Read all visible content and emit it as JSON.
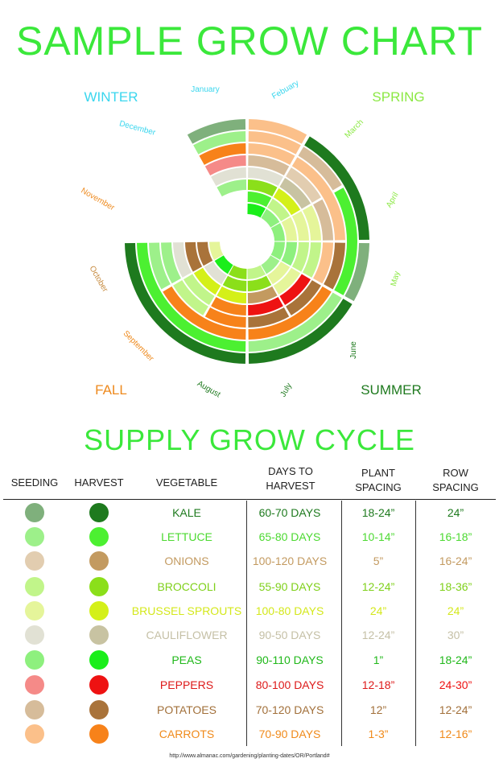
{
  "title": "SAMPLE GROW CHART",
  "subtitle": "SUPPLY GROW CYCLE",
  "seasons": [
    {
      "label": "WINTER",
      "color": "#3ad6ee"
    },
    {
      "label": "SPRING",
      "color": "#8be843"
    },
    {
      "label": "SUMMER",
      "color": "#1f7a1f"
    },
    {
      "label": "FALL",
      "color": "#ee8a1e"
    }
  ],
  "months": [
    {
      "label": "Febuary",
      "color": "#3ad6ee"
    },
    {
      "label": "March",
      "color": "#8be843"
    },
    {
      "label": "April",
      "color": "#8be843"
    },
    {
      "label": "May",
      "color": "#8be843"
    },
    {
      "label": "June",
      "color": "#1f7a1f"
    },
    {
      "label": "July",
      "color": "#1f7a1f"
    },
    {
      "label": "August",
      "color": "#1f7a1f"
    },
    {
      "label": "September",
      "color": "#ee8a1e"
    },
    {
      "label": "October",
      "color": "#c68a3e"
    },
    {
      "label": "November",
      "color": "#ee8a1e"
    },
    {
      "label": "December",
      "color": "#3ad6ee"
    },
    {
      "label": "January",
      "color": "#3ad6ee"
    }
  ],
  "table": {
    "headers": {
      "seeding": "SEEDING",
      "harvest": "HARVEST",
      "vegetable": "VEGETABLE",
      "days_line1": "DAYS TO",
      "days_line2": "HARVEST",
      "plant_line1": "PLANT",
      "plant_line2": "SPACING",
      "row_line1": "ROW",
      "row_line2": "SPACING"
    },
    "rows": [
      {
        "vegetable": "KALE",
        "days": "60-70 DAYS",
        "plant": "18-24”",
        "row": "24”",
        "seed_color": "#7fb07c",
        "harvest_color": "#1e7a1e",
        "text_color": "#1e7a1e",
        "row_text_color": "#1e7a1e"
      },
      {
        "vegetable": "LETTUCE",
        "days": "65-80 DAYS",
        "plant": "10-14”",
        "row": "16-18”",
        "seed_color": "#9df08a",
        "harvest_color": "#4cf031",
        "text_color": "#4cd931",
        "row_text_color": "#4cd931"
      },
      {
        "vegetable": "ONIONS",
        "days": "100-120 DAYS",
        "plant": "5”",
        "row": "16-24”",
        "seed_color": "#e2cdb0",
        "harvest_color": "#c39a60",
        "text_color": "#c39a60",
        "row_text_color": "#c39a60"
      },
      {
        "vegetable": "BROCCOLI",
        "days": "55-90 DAYS",
        "plant": "12-24”",
        "row": "18-36”",
        "seed_color": "#c1f58a",
        "harvest_color": "#8bdf1a",
        "text_color": "#7fd01a",
        "row_text_color": "#7fd01a"
      },
      {
        "vegetable": "BRUSSEL SPROUTS",
        "days": "100-80 DAYS",
        "plant": "24”",
        "row": "24”",
        "seed_color": "#e5f59a",
        "harvest_color": "#d4f019",
        "text_color": "#d4e81c",
        "row_text_color": "#d4e81c"
      },
      {
        "vegetable": "CAULIFLOWER",
        "days": "90-50 DAYS",
        "plant": "12-24”",
        "row": "30”",
        "seed_color": "#e1e1d4",
        "harvest_color": "#c8c3a2",
        "text_color": "#c5c0a6",
        "row_text_color": "#c5c0a6"
      },
      {
        "vegetable": "PEAS",
        "days": "90-110 DAYS",
        "plant": "1”",
        "row": "18-24”",
        "seed_color": "#8ef07e",
        "harvest_color": "#1aee1a",
        "text_color": "#20b81a",
        "row_text_color": "#20b81a"
      },
      {
        "vegetable": "PEPPERS",
        "days": "80-100 DAYS",
        "plant": "12-18”",
        "row": "24-30”",
        "seed_color": "#f58a88",
        "harvest_color": "#ee1212",
        "text_color": "#dd1a1a",
        "row_text_color": "#ee1212"
      },
      {
        "vegetable": "POTATOES",
        "days": "70-120 DAYS",
        "plant": "12”",
        "row": "12-24”",
        "seed_color": "#d6bc9a",
        "harvest_color": "#a9733a",
        "text_color": "#a2703a",
        "row_text_color": "#a2703a"
      },
      {
        "vegetable": "CARROTS",
        "days": "70-90 DAYS",
        "plant": "1-3”",
        "row": "12-16”",
        "seed_color": "#fbc08a",
        "harvest_color": "#f7821a",
        "text_color": "#f08a1a",
        "row_text_color": "#f08a1a"
      }
    ]
  },
  "source_url": "http://www.almanac.com/gardening/planting-dates/OR/Portland#"
}
